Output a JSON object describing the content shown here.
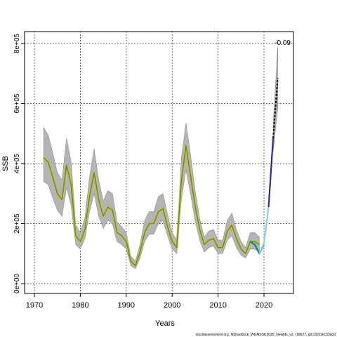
{
  "chart_data": {
    "type": "line",
    "xlabel": "Years",
    "ylabel": "SSB",
    "xlim": [
      1970,
      2026
    ],
    "ylim": [
      0,
      820000
    ],
    "x_ticks": [
      1970,
      1980,
      1990,
      2000,
      2010,
      2020
    ],
    "x_tick_labels": [
      "1970",
      "1980",
      "1990",
      "2000",
      "2010",
      "2020"
    ],
    "y_ticks": [
      0,
      200000,
      400000,
      600000,
      800000
    ],
    "y_tick_labels": [
      "0e+00",
      "2e+05",
      "4e+05",
      "6e+05",
      "8e+05"
    ],
    "grid": true,
    "annotation": "-0.09",
    "footer": "stockassessment.org, NShaddock_WGNSSK2025_Newlds_v2, r18627, git:c9c61ec53a0d",
    "series": [
      {
        "role": "estimate",
        "color": "#6b8e23",
        "x": [
          1972,
          1973,
          1974,
          1975,
          1976,
          1977,
          1978,
          1979,
          1980,
          1981,
          1982,
          1983,
          1984,
          1985,
          1986,
          1987,
          1988,
          1989,
          1990,
          1991,
          1992,
          1993,
          1994,
          1995,
          1996,
          1997,
          1998,
          1999,
          2000,
          2001,
          2002,
          2003,
          2004,
          2005,
          2006,
          2007,
          2008,
          2009,
          2010,
          2011,
          2012,
          2013,
          2014,
          2015,
          2016,
          2017,
          2018,
          2019
        ],
        "y": [
          420000,
          405000,
          355000,
          300000,
          280000,
          395000,
          330000,
          160000,
          140000,
          180000,
          290000,
          370000,
          280000,
          225000,
          255000,
          245000,
          170000,
          160000,
          140000,
          75000,
          60000,
          105000,
          170000,
          200000,
          200000,
          240000,
          250000,
          190000,
          140000,
          120000,
          340000,
          460000,
          360000,
          260000,
          180000,
          130000,
          145000,
          150000,
          120000,
          120000,
          175000,
          195000,
          150000,
          115000,
          100000,
          140000,
          140000,
          130000
        ],
        "lower": [
          340000,
          330000,
          285000,
          245000,
          225000,
          320000,
          260000,
          130000,
          115000,
          150000,
          240000,
          300000,
          225000,
          185000,
          210000,
          200000,
          140000,
          130000,
          115000,
          60000,
          50000,
          85000,
          140000,
          165000,
          165000,
          200000,
          210000,
          160000,
          115000,
          100000,
          280000,
          380000,
          300000,
          210000,
          145000,
          105000,
          120000,
          125000,
          100000,
          100000,
          145000,
          160000,
          120000,
          95000,
          85000,
          115000,
          115000,
          105000
        ],
        "upper": [
          520000,
          495000,
          435000,
          370000,
          345000,
          485000,
          405000,
          195000,
          170000,
          220000,
          355000,
          450000,
          345000,
          275000,
          310000,
          300000,
          205000,
          190000,
          170000,
          92000,
          75000,
          130000,
          210000,
          240000,
          240000,
          290000,
          300000,
          230000,
          170000,
          145000,
          415000,
          535000,
          430000,
          310000,
          215000,
          155000,
          175000,
          180000,
          145000,
          145000,
          210000,
          235000,
          180000,
          140000,
          120000,
          170000,
          170000,
          155000
        ]
      },
      {
        "role": "recent",
        "color": "#008b8b",
        "x": [
          2017,
          2018,
          2019,
          2020
        ],
        "y": [
          140000,
          130000,
          100000,
          130000
        ]
      },
      {
        "role": "forecast-light",
        "color": "#87ceeb",
        "x": [
          2019,
          2020,
          2021
        ],
        "y": [
          100000,
          135000,
          255000
        ]
      },
      {
        "role": "forecast-dark",
        "color": "#2e2e8a",
        "x": [
          2021,
          2022
        ],
        "y": [
          255000,
          485000
        ]
      },
      {
        "role": "forecast-dashed",
        "color": "#000000",
        "x": [
          2022,
          2023
        ],
        "y": [
          485000,
          685000
        ],
        "lower": [
          440000,
          585000
        ],
        "upper": [
          530000,
          790000
        ]
      }
    ]
  }
}
